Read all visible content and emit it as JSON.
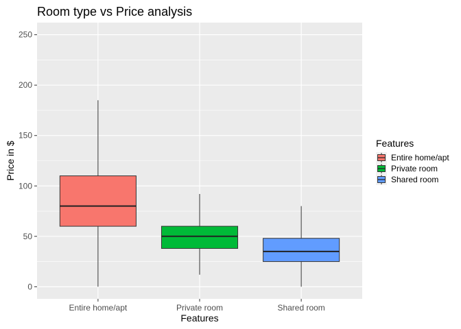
{
  "chart_data": {
    "type": "box",
    "title": "Room type vs Price analysis",
    "xlabel": "Features",
    "ylabel": "Price in $",
    "ylim": [
      -12,
      262
    ],
    "yticks": [
      0,
      50,
      100,
      150,
      200,
      250
    ],
    "ytick_labels": [
      "0",
      "50",
      "100",
      "150",
      "200",
      "250"
    ],
    "categories": [
      "Entire home/apt",
      "Private room",
      "Shared room"
    ],
    "boxes": [
      {
        "category": "Entire home/apt",
        "min": 0,
        "q1": 60,
        "median": 80,
        "q3": 110,
        "max": 185,
        "color": "#F8766D"
      },
      {
        "category": "Private room",
        "min": 12,
        "q1": 38,
        "median": 50,
        "q3": 60,
        "max": 92,
        "color": "#00BA38"
      },
      {
        "category": "Shared room",
        "min": 0,
        "q1": 25,
        "median": 35,
        "q3": 48,
        "max": 80,
        "color": "#619CFF"
      }
    ],
    "legend": {
      "title": "Features",
      "position": "right",
      "entries": [
        "Entire home/apt",
        "Private room",
        "Shared room"
      ]
    },
    "panel_background": "#EBEBEB",
    "grid": true
  }
}
